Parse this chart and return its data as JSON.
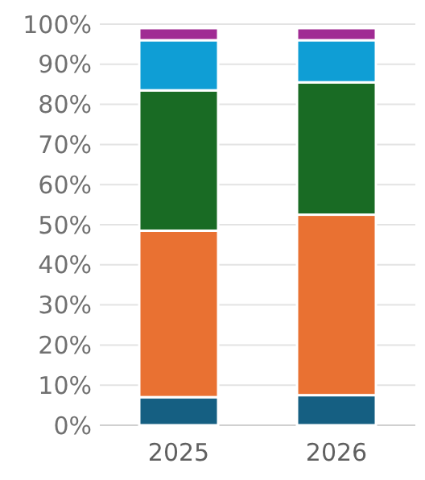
{
  "chart_data": {
    "type": "bar",
    "stacked": true,
    "categories": [
      "2025",
      "2026"
    ],
    "series": [
      {
        "color": "#155f82",
        "values": [
          7,
          7.5
        ]
      },
      {
        "color": "#e97132",
        "values": [
          41.5,
          45
        ]
      },
      {
        "color": "#196b24",
        "values": [
          35,
          33
        ]
      },
      {
        "color": "#0f9ed5",
        "values": [
          12.5,
          10.5
        ]
      },
      {
        "color": "#a02b93",
        "values": [
          3,
          3
        ]
      }
    ],
    "ylim": [
      0,
      100
    ],
    "yticks": [
      {
        "value": 0,
        "label": "0%"
      },
      {
        "value": 10,
        "label": "10%"
      },
      {
        "value": 20,
        "label": "20%"
      },
      {
        "value": 30,
        "label": "30%"
      },
      {
        "value": 40,
        "label": "40%"
      },
      {
        "value": 50,
        "label": "50%"
      },
      {
        "value": 60,
        "label": "60%"
      },
      {
        "value": 70,
        "label": "70%"
      },
      {
        "value": 80,
        "label": "80%"
      },
      {
        "value": 90,
        "label": "90%"
      },
      {
        "value": 100,
        "label": "100%"
      }
    ],
    "grid": "y"
  }
}
